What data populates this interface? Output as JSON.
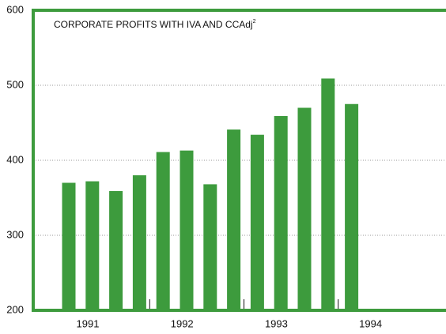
{
  "chart_data": {
    "type": "bar",
    "title": "CORPORATE PROFITS WITH IVA AND CCAdj",
    "title_footnote": "2",
    "categories": [
      null,
      null,
      null,
      null,
      null,
      null,
      null,
      null,
      null,
      null,
      null,
      null,
      null
    ],
    "groups": [
      "1991",
      "1992",
      "1993",
      "1994"
    ],
    "values": [
      370,
      372,
      359,
      380,
      411,
      413,
      368,
      441,
      434,
      459,
      470,
      509,
      475
    ],
    "color": "#3d9b3d",
    "ylim": [
      200,
      600
    ],
    "yticks": [
      200,
      300,
      400,
      500,
      600
    ],
    "grid": true
  }
}
